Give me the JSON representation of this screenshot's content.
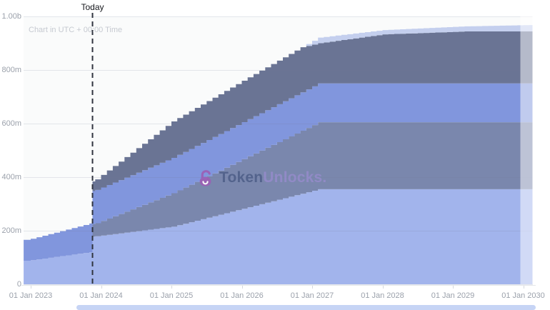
{
  "watermark": {
    "brand_bold": "Token",
    "brand_light": "Unlocks."
  },
  "colors": {
    "plot_bg": "#fafbfb",
    "gridline": "rgba(110,120,150,0.16)",
    "axis_line": "#e4e7ea",
    "tick_mark": "#d6d9df",
    "axis_text": "#9ba1ab",
    "today_line": "#30343f",
    "today_text": "#15171c",
    "utc_text": "#c6cad1",
    "watermark_token": "#50608a",
    "watermark_unlocks": "#938bc9",
    "watermark_lock": "#9c5fb5",
    "scrollbar_thumb": "#c6d4f5",
    "fade_overlay": "rgba(255,255,255,0.5)"
  },
  "chart_data": {
    "type": "area",
    "stacked": true,
    "step": "monthly",
    "title": "",
    "xlabel": "",
    "ylabel": "",
    "x_unit": "months since 01 Jan 2023",
    "y_unit": "tokens (millions)",
    "ylim": [
      0,
      1000
    ],
    "x_range_months": [
      -1.2,
      85.6
    ],
    "grid": "horizontal-only",
    "legend": "none",
    "annotations": {
      "today": {
        "label": "Today",
        "x_months": 10.54
      },
      "utc_note": "Chart in UTC + 00:00 Time"
    },
    "y_ticks": [
      {
        "label": "1.00b",
        "value": 1000
      },
      {
        "label": "800m",
        "value": 800
      },
      {
        "label": "600m",
        "value": 600
      },
      {
        "label": "400m",
        "value": 400
      },
      {
        "label": "200m",
        "value": 200
      },
      {
        "label": "0",
        "value": 0
      }
    ],
    "x_ticks": [
      {
        "label": "01 Jan 2023",
        "year": 2023
      },
      {
        "label": "01 Jan 2024",
        "year": 2024
      },
      {
        "label": "01 Jan 2025",
        "year": 2025
      },
      {
        "label": "01 Jan 2026",
        "year": 2026
      },
      {
        "label": "01 Jan 2027",
        "year": 2027
      },
      {
        "label": "01 Jan 2028",
        "year": 2028
      },
      {
        "label": "01 Jan 2029",
        "year": 2029
      },
      {
        "label": "01 Jan 2030",
        "year": 2030
      }
    ],
    "series": [
      {
        "name": "allocation-1-light-blue",
        "color": "#a2b4ec",
        "cumulative_breakpoints": [
          [
            -1.2,
            88
          ],
          [
            0,
            90
          ],
          [
            10,
            120
          ],
          [
            10.54,
            178
          ],
          [
            24,
            215
          ],
          [
            49,
            355
          ],
          [
            85.6,
            355
          ]
        ]
      },
      {
        "name": "allocation-2-slate-blue",
        "color": "#7a87ad",
        "cumulative_breakpoints": [
          [
            -1.2,
            88
          ],
          [
            0,
            90
          ],
          [
            10,
            120
          ],
          [
            10.54,
            224
          ],
          [
            24,
            340
          ],
          [
            49,
            605
          ],
          [
            85.6,
            605
          ]
        ]
      },
      {
        "name": "allocation-3-medium-blue",
        "color": "#8196dd",
        "cumulative_breakpoints": [
          [
            -1.2,
            166
          ],
          [
            0,
            170
          ],
          [
            10,
            227
          ],
          [
            10.54,
            348
          ],
          [
            24,
            472
          ],
          [
            49,
            750
          ],
          [
            85.6,
            750
          ]
        ]
      },
      {
        "name": "allocation-4-dark-slate",
        "color": "#6a7494",
        "cumulative_breakpoints": [
          [
            -1.2,
            166
          ],
          [
            0,
            170
          ],
          [
            10,
            227
          ],
          [
            10.54,
            384
          ],
          [
            24,
            608
          ],
          [
            36,
            760
          ],
          [
            46,
            885
          ],
          [
            49,
            900
          ],
          [
            60,
            933
          ],
          [
            74,
            944
          ],
          [
            85.6,
            944
          ]
        ]
      },
      {
        "name": "allocation-5-pale-blue",
        "color": "#c4cfee",
        "cumulative_breakpoints": [
          [
            -1.2,
            166
          ],
          [
            0,
            170
          ],
          [
            10,
            227
          ],
          [
            10.54,
            384
          ],
          [
            24,
            608
          ],
          [
            36,
            760
          ],
          [
            46,
            885
          ],
          [
            49,
            921
          ],
          [
            60,
            949
          ],
          [
            74,
            963
          ],
          [
            85.6,
            968
          ]
        ]
      }
    ]
  }
}
